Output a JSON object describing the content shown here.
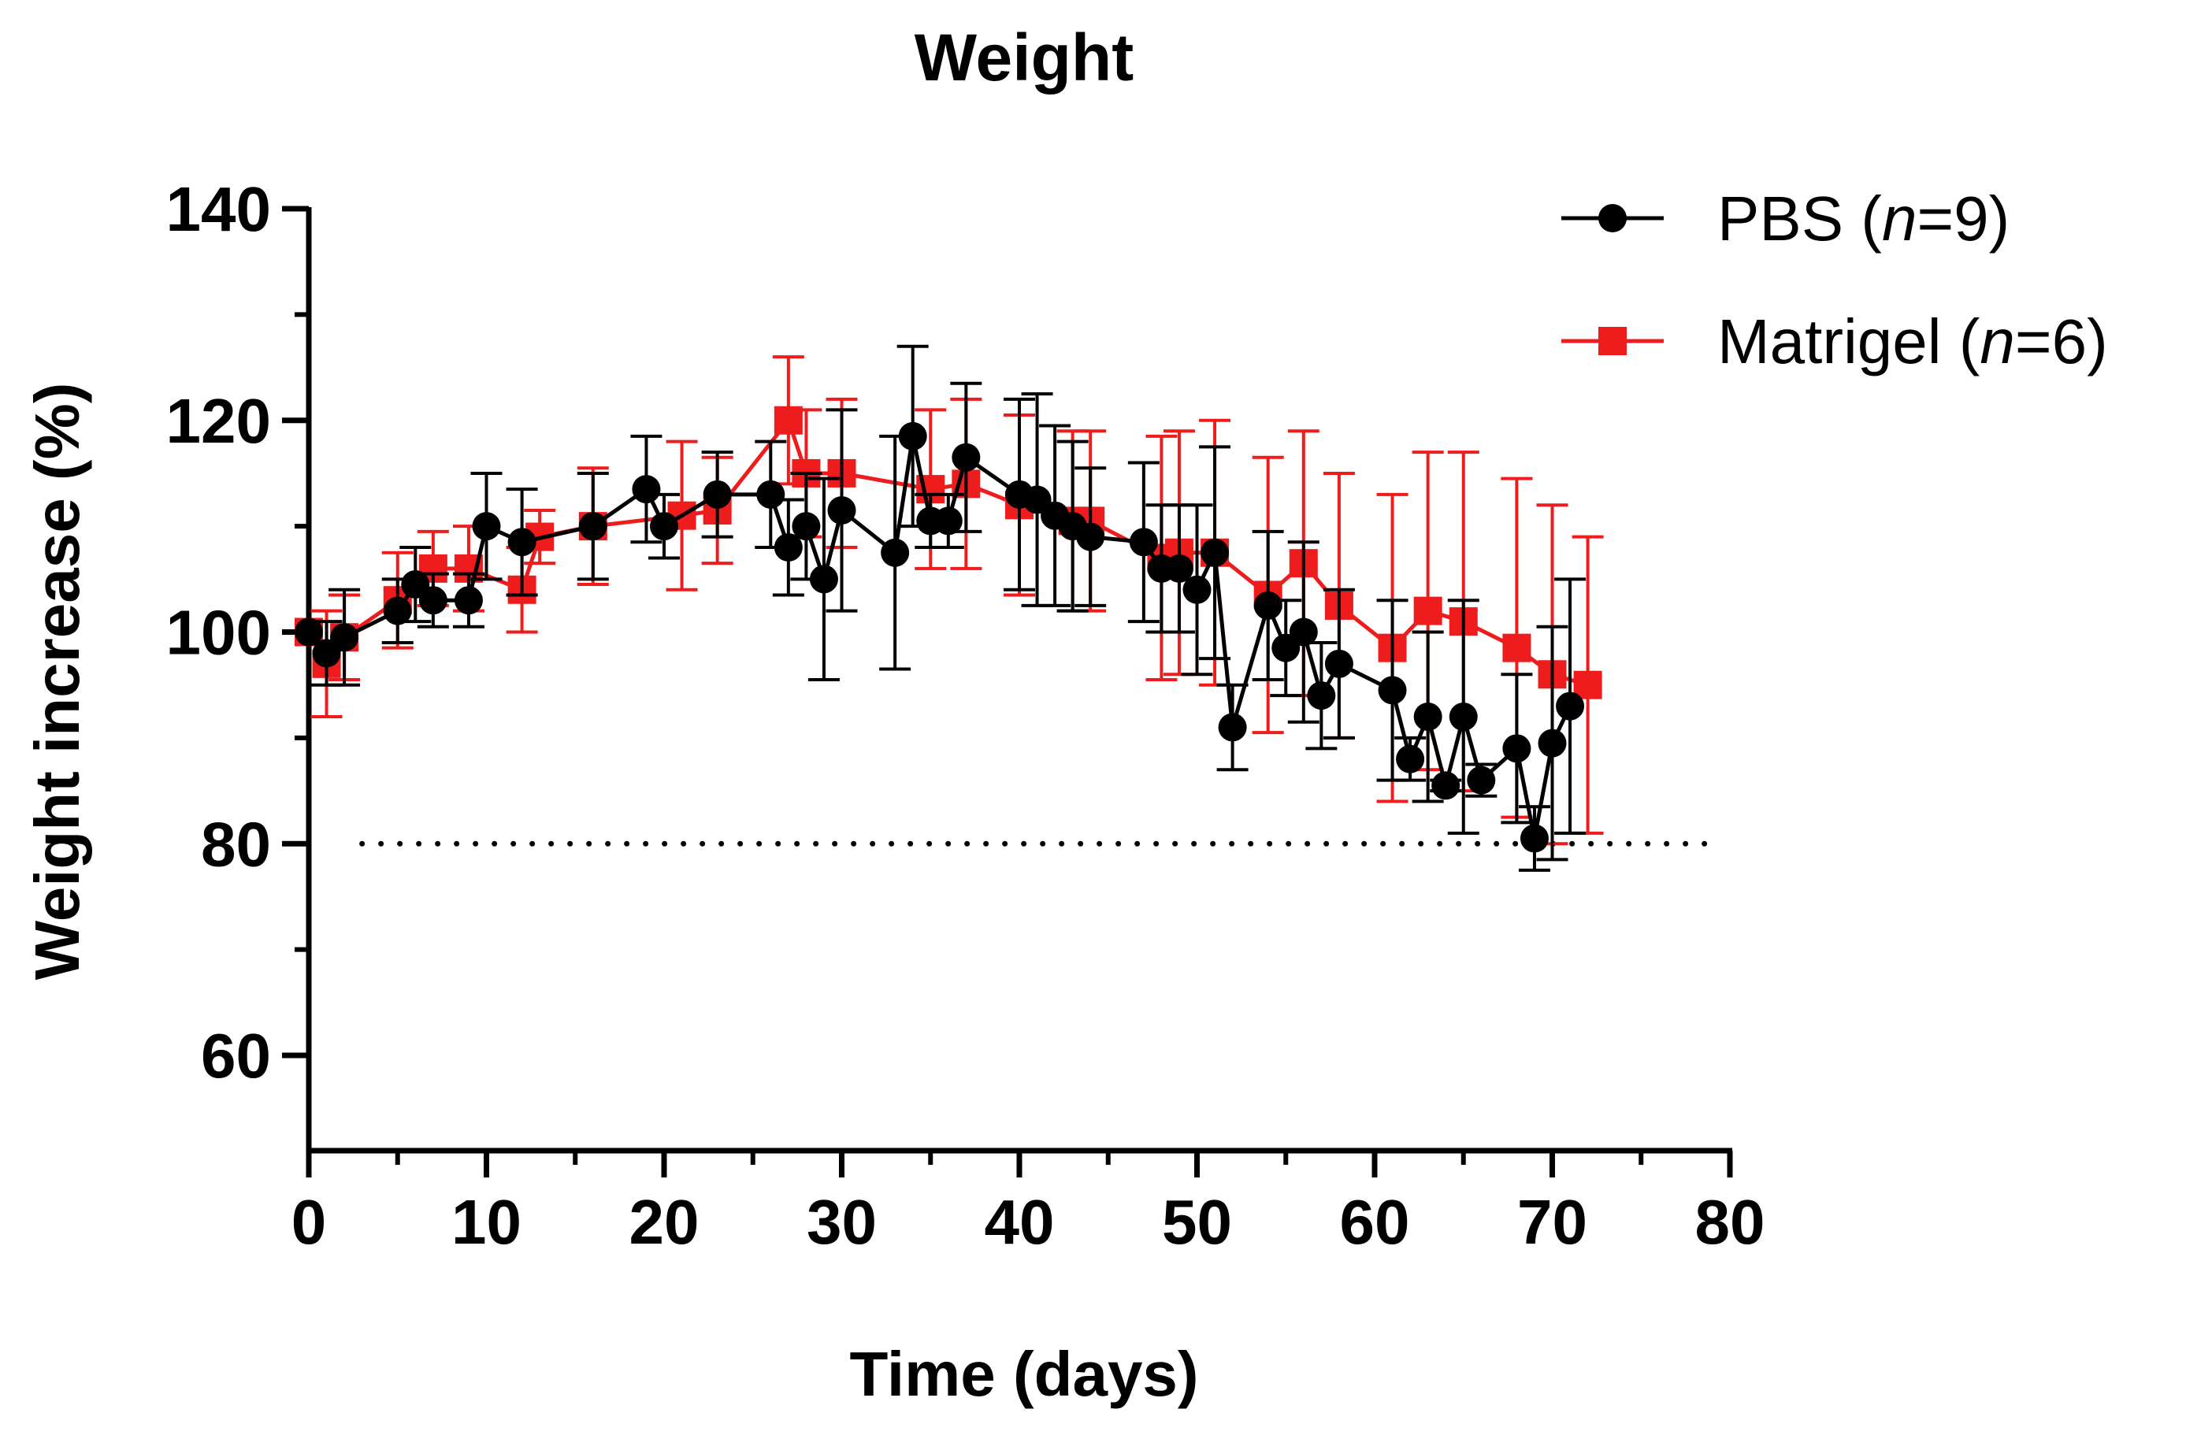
{
  "chart_data": {
    "type": "line",
    "title": "Weight",
    "xlabel": "Time (days)",
    "ylabel": "Weight increase (%)",
    "xlim": [
      0,
      80
    ],
    "ylim": [
      51,
      140
    ],
    "x_ticks": [
      0,
      10,
      20,
      30,
      40,
      50,
      60,
      70,
      80
    ],
    "x_minor_ticks": [
      5,
      15,
      25,
      35,
      45,
      55,
      65,
      75
    ],
    "y_ticks": [
      60,
      80,
      100,
      120,
      140
    ],
    "y_minor_ticks": [
      70,
      90,
      110,
      130
    ],
    "reference_line": {
      "y": 80,
      "style": "dotted",
      "color": "#000000"
    },
    "legend": {
      "position": "top-right",
      "entries": [
        {
          "name_main": "PBS (",
          "name_italic": "n",
          "name_rest": "=9)"
        },
        {
          "name_main": "Matrigel (",
          "name_italic": "n",
          "name_rest": "=6)"
        }
      ]
    },
    "series": [
      {
        "name": "PBS (n=9)",
        "color": "#000000",
        "marker": "circle",
        "x": [
          0,
          1,
          2,
          5,
          6,
          7,
          9,
          10,
          12,
          16,
          19,
          20,
          23,
          26,
          27,
          28,
          29,
          30,
          33,
          34,
          35,
          36,
          37,
          40,
          41,
          42,
          43,
          44,
          47,
          48,
          49,
          50,
          51,
          52,
          54,
          55,
          56,
          57,
          58,
          61,
          62,
          63,
          64,
          65,
          66,
          68,
          69,
          70,
          71
        ],
        "values": [
          100,
          98,
          99.5,
          102,
          104.5,
          103,
          103,
          110,
          108.5,
          110,
          113.5,
          110,
          113,
          113,
          108,
          110,
          105,
          111.5,
          107.5,
          118.5,
          110.5,
          110.5,
          116.5,
          113,
          112.5,
          111,
          110,
          109,
          108.5,
          106,
          106,
          104,
          107.5,
          91,
          102.5,
          98.5,
          100,
          94,
          97,
          94.5,
          88,
          92,
          85.5,
          92,
          86,
          89,
          80.5,
          89.5,
          93
        ],
        "errors": [
          0,
          3,
          4.5,
          3,
          3.5,
          2.5,
          2.5,
          5,
          5,
          5,
          5,
          3,
          4,
          5,
          4.5,
          5,
          9.5,
          9.5,
          11,
          8.5,
          2.5,
          2.5,
          7,
          9,
          10,
          8.5,
          8,
          6.5,
          7.5,
          6,
          6,
          8,
          10,
          4,
          7,
          4.5,
          8.5,
          5,
          7,
          8.5,
          2,
          8,
          0.5,
          11,
          1.5,
          7,
          3,
          11,
          12
        ]
      },
      {
        "name": "Matrigel (n=6)",
        "color": "#ee1c1c",
        "marker": "square",
        "x": [
          0,
          1,
          2,
          5,
          7,
          9,
          12,
          13,
          16,
          21,
          23,
          27,
          28,
          30,
          35,
          37,
          40,
          43,
          44,
          48,
          49,
          51,
          54,
          56,
          58,
          61,
          63,
          65,
          68,
          70,
          72
        ],
        "values": [
          100,
          97,
          99.5,
          103,
          106,
          106,
          104,
          109,
          110,
          111,
          111.5,
          120,
          115,
          115,
          113.5,
          114,
          112,
          110.5,
          110.5,
          107,
          107.5,
          107.5,
          103.5,
          106.5,
          102.5,
          98.5,
          102,
          101,
          98.5,
          96,
          95
        ],
        "errors": [
          0,
          5,
          4,
          4.5,
          3.5,
          4,
          4,
          2.5,
          5.5,
          7,
          5,
          6,
          6,
          7,
          7.5,
          8,
          8.5,
          8.5,
          8.5,
          11.5,
          11.5,
          12.5,
          13,
          12.5,
          12.5,
          14.5,
          15,
          16,
          16,
          16,
          14
        ]
      }
    ]
  }
}
